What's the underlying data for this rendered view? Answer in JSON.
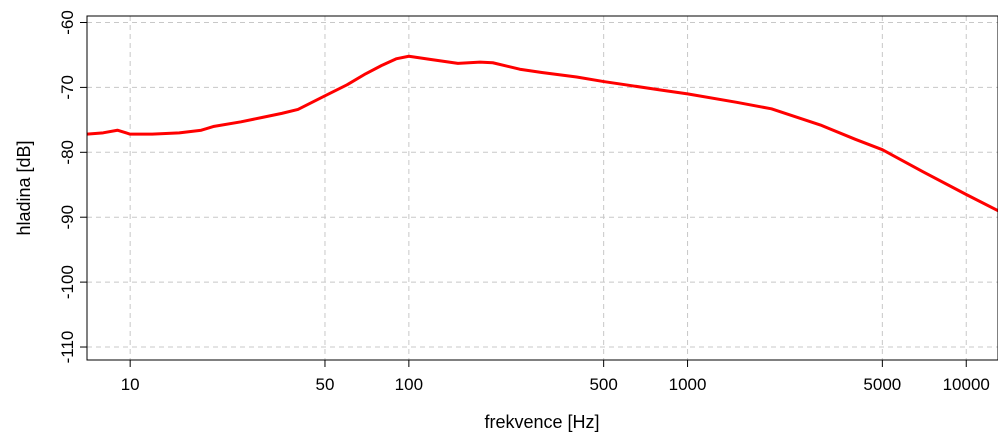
{
  "chart_data": {
    "type": "line",
    "title": "",
    "xlabel": "frekvence [Hz]",
    "ylabel": "hladina [dB]",
    "x_scale": "log",
    "xlim": [
      7,
      13000
    ],
    "ylim": [
      -112,
      -59
    ],
    "grid": true,
    "x_ticks": [
      10,
      50,
      100,
      500,
      1000,
      5000,
      10000
    ],
    "x_tick_labels": [
      "10",
      "50",
      "100",
      "500",
      "1000",
      "5000",
      "10000"
    ],
    "y_ticks": [
      -60,
      -70,
      -80,
      -90,
      -100,
      -110
    ],
    "y_tick_labels": [
      "-60",
      "-70",
      "-80",
      "-90",
      "-100",
      "-110"
    ],
    "series": [
      {
        "color": "#ff0000",
        "x": [
          7,
          8,
          9,
          10,
          12,
          15,
          18,
          20,
          25,
          30,
          35,
          40,
          50,
          60,
          70,
          80,
          90,
          100,
          120,
          150,
          180,
          200,
          250,
          300,
          400,
          500,
          600,
          800,
          1000,
          1500,
          2000,
          3000,
          4000,
          5000,
          7000,
          10000,
          13000
        ],
        "y": [
          -77.2,
          -77.0,
          -76.6,
          -77.2,
          -77.2,
          -77.0,
          -76.6,
          -76.0,
          -75.3,
          -74.6,
          -74.0,
          -73.4,
          -71.3,
          -69.6,
          -67.9,
          -66.6,
          -65.6,
          -65.2,
          -65.7,
          -66.3,
          -66.1,
          -66.2,
          -67.2,
          -67.7,
          -68.4,
          -69.1,
          -69.6,
          -70.4,
          -71.0,
          -72.3,
          -73.3,
          -75.8,
          -78.0,
          -79.6,
          -83.0,
          -86.5,
          -89.0
        ]
      }
    ]
  }
}
